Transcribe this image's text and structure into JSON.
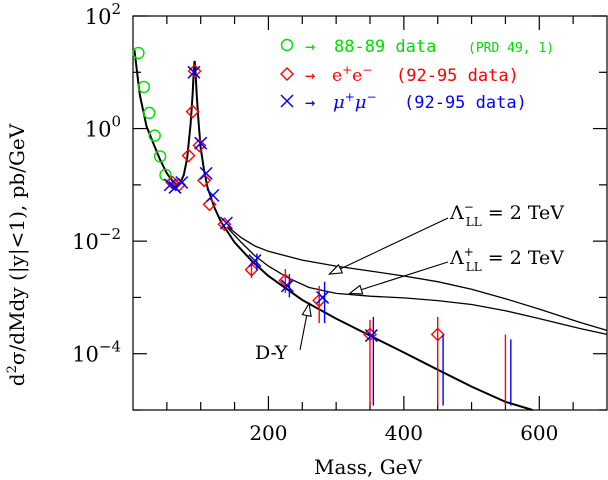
{
  "chart_data": {
    "type": "scatter",
    "xlabel": "Mass, GeV",
    "ylabel": "d²σ/dMdy (|y|<1), pb/GeV",
    "ylabel_parts": {
      "a": "d",
      "sup": "2",
      "b": "σ/dMdy (|y|<1), pb/GeV"
    },
    "xlim": [
      0,
      700
    ],
    "ylim": [
      1e-05,
      100
    ],
    "yscale": "log",
    "xticks": [
      200,
      400,
      600
    ],
    "xtick_labels": [
      "200",
      "400",
      "600"
    ],
    "yticks": [
      100,
      1,
      0.01,
      0.0001
    ],
    "ytick_labels": [
      {
        "base": "10",
        "exp": "2"
      },
      {
        "base": "10",
        "exp": "0"
      },
      {
        "base": "10",
        "exp": "−2"
      },
      {
        "base": "10",
        "exp": "−4"
      }
    ],
    "legend": {
      "position": "top-right",
      "entries": [
        {
          "marker": "circle",
          "color": "#00dd00",
          "arrow": "→",
          "text": "88-89 data",
          "note": "(PRD 49, 1)"
        },
        {
          "marker": "diamond",
          "color": "#ff0000",
          "arrow": "→",
          "text_base": "e",
          "text_sup1": "+",
          "text_mid": "e",
          "text_sup2": "−",
          "text": "(92-95 data)"
        },
        {
          "marker": "cross",
          "color": "#0000ff",
          "arrow": "→",
          "text": "(92-95 data)"
        }
      ]
    },
    "series": [
      {
        "name": "88-89 data",
        "marker": "circle",
        "color": "#00dd00",
        "points": [
          {
            "x": 8,
            "y": 22
          },
          {
            "x": 16,
            "y": 5.5
          },
          {
            "x": 24,
            "y": 1.9
          },
          {
            "x": 32,
            "y": 0.75
          },
          {
            "x": 40,
            "y": 0.32
          },
          {
            "x": 48,
            "y": 0.15
          }
        ]
      },
      {
        "name": "e+e- (92-95 data)",
        "marker": "diamond",
        "color": "#ff0000",
        "points": [
          {
            "x": 58,
            "y": 0.11
          },
          {
            "x": 68,
            "y": 0.1
          },
          {
            "x": 82,
            "y": 0.33
          },
          {
            "x": 88,
            "y": 2.0
          },
          {
            "x": 91,
            "y": 10.5
          },
          {
            "x": 98,
            "y": 0.5
          },
          {
            "x": 105,
            "y": 0.12
          },
          {
            "x": 113,
            "y": 0.045
          },
          {
            "x": 135,
            "y": 0.02
          },
          {
            "x": 175,
            "y": 0.0031,
            "err": [
              0.0022,
              0.0044
            ]
          },
          {
            "x": 225,
            "y": 0.002,
            "err": [
              0.0012,
              0.0032
            ]
          },
          {
            "x": 275,
            "y": 0.00088,
            "err": [
              0.00035,
              0.0016
            ]
          },
          {
            "x": 350,
            "y": 0.00022,
            "err": [
              1.2e-05,
              0.0004
            ]
          },
          {
            "x": 450,
            "y": 0.00022,
            "err": [
              1.2e-05,
              0.00045
            ]
          },
          {
            "x": 550,
            "y": 0.0,
            "err": [
              1.2e-05,
              0.00022
            ]
          }
        ]
      },
      {
        "name": "μ+μ- (92-95 data)",
        "marker": "cross",
        "color": "#0000ff",
        "points": [
          {
            "x": 55,
            "y": 0.1
          },
          {
            "x": 62,
            "y": 0.09
          },
          {
            "x": 72,
            "y": 0.11
          },
          {
            "x": 90,
            "y": 10
          },
          {
            "x": 100,
            "y": 0.55
          },
          {
            "x": 108,
            "y": 0.16
          },
          {
            "x": 118,
            "y": 0.065
          },
          {
            "x": 138,
            "y": 0.021
          },
          {
            "x": 180,
            "y": 0.0045,
            "err": [
              0.003,
              0.006
            ]
          },
          {
            "x": 228,
            "y": 0.0016,
            "err": [
              0.001,
              0.0026
            ]
          },
          {
            "x": 280,
            "y": 0.001,
            "err": [
              0.00035,
              0.0019
            ]
          },
          {
            "x": 352,
            "y": 0.00021,
            "err": [
              1.2e-05,
              0.00045
            ]
          },
          {
            "x": 455,
            "y": 0.0,
            "err": [
              1.2e-05,
              0.00022
            ]
          },
          {
            "x": 555,
            "y": 0.0,
            "err": [
              1.2e-05,
              0.00018
            ]
          }
        ]
      }
    ],
    "curves": [
      {
        "name": "D-Y",
        "points": [
          [
            2,
            25
          ],
          [
            10,
            4
          ],
          [
            20,
            1.1
          ],
          [
            30,
            0.55
          ],
          [
            40,
            0.28
          ],
          [
            50,
            0.16
          ],
          [
            60,
            0.11
          ],
          [
            65,
            0.1
          ],
          [
            70,
            0.11
          ],
          [
            75,
            0.15
          ],
          [
            80,
            0.3
          ],
          [
            85,
            1.2
          ],
          [
            88,
            4
          ],
          [
            90,
            12
          ],
          [
            91,
            16
          ],
          [
            92,
            12
          ],
          [
            94,
            4
          ],
          [
            97,
            1.2
          ],
          [
            100,
            0.45
          ],
          [
            105,
            0.18
          ],
          [
            110,
            0.09
          ],
          [
            120,
            0.04
          ],
          [
            130,
            0.022
          ],
          [
            150,
            0.0095
          ],
          [
            175,
            0.0045
          ],
          [
            200,
            0.0024
          ],
          [
            250,
            0.0009
          ],
          [
            300,
            0.00042
          ],
          [
            350,
            0.00021
          ],
          [
            400,
            0.000105
          ],
          [
            450,
            5.2e-05
          ],
          [
            500,
            2.6e-05
          ],
          [
            550,
            1.4e-05
          ],
          [
            590,
            9e-06
          ]
        ]
      },
      {
        "name": "ΛLL- = 2 TeV",
        "points": [
          [
            140,
            0.018
          ],
          [
            160,
            0.0115
          ],
          [
            180,
            0.0082
          ],
          [
            200,
            0.0066
          ],
          [
            250,
            0.0046
          ],
          [
            300,
            0.0036
          ],
          [
            350,
            0.00295
          ],
          [
            400,
            0.0024
          ],
          [
            450,
            0.0019
          ],
          [
            500,
            0.0014
          ],
          [
            550,
            0.00095
          ],
          [
            600,
            0.00062
          ],
          [
            660,
            0.00036
          ],
          [
            700,
            0.00026
          ]
        ]
      },
      {
        "name": "ΛLL+ = 2 TeV",
        "points": [
          [
            140,
            0.017
          ],
          [
            160,
            0.0095
          ],
          [
            180,
            0.0055
          ],
          [
            200,
            0.0036
          ],
          [
            230,
            0.0022
          ],
          [
            260,
            0.0015
          ],
          [
            300,
            0.00118
          ],
          [
            350,
            0.00105
          ],
          [
            400,
            0.00098
          ],
          [
            450,
            0.00088
          ],
          [
            500,
            0.00075
          ],
          [
            550,
            0.00058
          ],
          [
            600,
            0.00042
          ],
          [
            660,
            0.00028
          ],
          [
            700,
            0.00022
          ]
        ]
      }
    ],
    "annotations": [
      {
        "id": "lam-minus",
        "label_base": "Λ",
        "label_sub": "LL",
        "label_sup": "−",
        "label_rest": "= 2 TeV",
        "arrow_to": [
          290,
          0.0026
        ]
      },
      {
        "id": "lam-plus",
        "label_base": "Λ",
        "label_sub": "LL",
        "label_sup": "+",
        "label_rest": "= 2 TeV",
        "arrow_to": [
          320,
          0.00118
        ]
      },
      {
        "id": "dy",
        "text": "D-Y",
        "arrow_to": [
          260,
          0.00078
        ]
      }
    ]
  }
}
